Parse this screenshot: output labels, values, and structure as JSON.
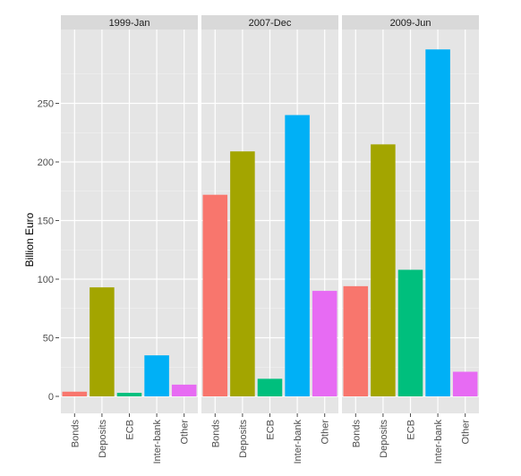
{
  "chart_data": {
    "type": "bar",
    "ylabel": "Billion Euro",
    "xlabel": "",
    "title": "",
    "categories": [
      "Bonds",
      "Deposits",
      "ECB",
      "Inter-bank",
      "Other"
    ],
    "colors": [
      "#F8766D",
      "#A3A500",
      "#00BF7D",
      "#00B0F6",
      "#E76BF3"
    ],
    "ylim": [
      -15,
      300
    ],
    "yticks": [
      0,
      50,
      100,
      150,
      200,
      250
    ],
    "grid": true,
    "legend": "none",
    "panels": [
      {
        "label": "1999-Jan",
        "values": [
          4,
          93,
          3,
          35,
          10
        ]
      },
      {
        "label": "2007-Dec",
        "values": [
          172,
          209,
          15,
          240,
          90
        ]
      },
      {
        "label": "2009-Jun",
        "values": [
          94,
          215,
          108,
          296,
          21
        ]
      }
    ]
  }
}
